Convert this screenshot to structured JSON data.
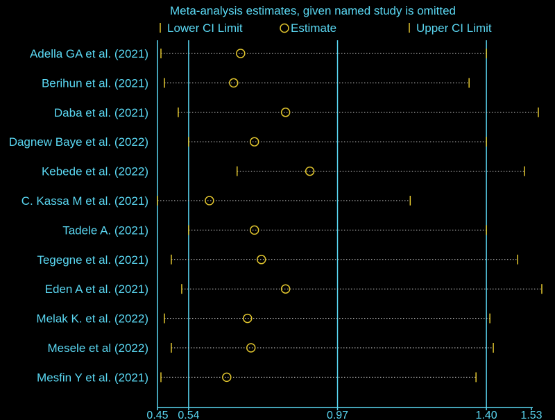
{
  "chart_data": {
    "type": "forest",
    "title": "Meta-analysis estimates, given named study is omitted",
    "legend": {
      "lower": "Lower CI Limit",
      "estimate": "Estimate",
      "upper": "Upper CI Limit"
    },
    "x_ticks": [
      {
        "value": 0.45,
        "label": "0.45"
      },
      {
        "value": 0.54,
        "label": "0.54"
      },
      {
        "value": 0.97,
        "label": "0.97"
      },
      {
        "value": 1.4,
        "label": "1.40"
      },
      {
        "value": 1.53,
        "label": "1.53"
      }
    ],
    "xlim": [
      0.45,
      1.53
    ],
    "reference_lines": [
      0.54,
      0.97,
      1.4
    ],
    "studies": [
      {
        "name": "Adella GA et al. (2021)",
        "lower": 0.46,
        "estimate": 0.69,
        "upper": 1.4
      },
      {
        "name": "Berihun et al. (2021)",
        "lower": 0.47,
        "estimate": 0.67,
        "upper": 1.35
      },
      {
        "name": "Daba et al. (2021)",
        "lower": 0.51,
        "estimate": 0.82,
        "upper": 1.55
      },
      {
        "name": "Dagnew Baye et al. (2022)",
        "lower": 0.54,
        "estimate": 0.73,
        "upper": 1.4
      },
      {
        "name": "Kebede et al. (2022)",
        "lower": 0.68,
        "estimate": 0.89,
        "upper": 1.51
      },
      {
        "name": "C. Kassa M et al. (2021)",
        "lower": 0.45,
        "estimate": 0.6,
        "upper": 1.18
      },
      {
        "name": "Tadele A. (2021)",
        "lower": 0.54,
        "estimate": 0.73,
        "upper": 1.4
      },
      {
        "name": "Tegegne et al.  (2021)",
        "lower": 0.49,
        "estimate": 0.75,
        "upper": 1.49
      },
      {
        "name": "Eden A et al. (2021)",
        "lower": 0.52,
        "estimate": 0.82,
        "upper": 1.56
      },
      {
        "name": "Melak K. et al. (2022)",
        "lower": 0.47,
        "estimate": 0.71,
        "upper": 1.41
      },
      {
        "name": "Mesele et al (2022)",
        "lower": 0.49,
        "estimate": 0.72,
        "upper": 1.42
      },
      {
        "name": "Mesfin Y et al. (2021)",
        "lower": 0.46,
        "estimate": 0.65,
        "upper": 1.37
      }
    ],
    "colors": {
      "background": "#000000",
      "text": "#5ad7f2",
      "axis": "#5ad7f2",
      "marker": "#e2c62e",
      "dotted": "#d6d6d6"
    }
  }
}
